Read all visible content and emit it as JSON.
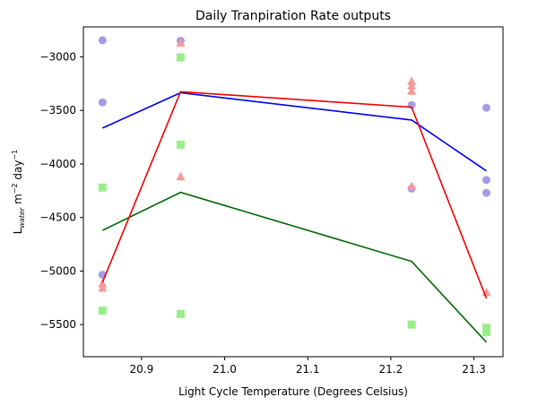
{
  "chart_data": {
    "type": "scatter",
    "title": "Daily Tranpiration Rate outputs",
    "xlabel": "Light Cycle Temperature (Degrees Celsius)",
    "ylabel": {
      "base": "L",
      "sub": "water",
      "mid": " m",
      "sup1": "−2",
      "mid2": " day",
      "sup2": "−1"
    },
    "xlim": [
      20.83,
      21.335
    ],
    "ylim": [
      -5800,
      -2720
    ],
    "xticks": [
      20.9,
      21.0,
      21.1,
      21.2,
      21.3
    ],
    "xtick_labels": [
      "20.9",
      "21.0",
      "21.1",
      "21.2",
      "21.3"
    ],
    "yticks": [
      -5500,
      -5000,
      -4500,
      -4000,
      -3500,
      -3000
    ],
    "ytick_labels": [
      "−5500",
      "−5000",
      "−4500",
      "−4000",
      "−3500",
      "−3000"
    ],
    "grid": false,
    "series": [
      {
        "marker": "circle",
        "color": "#a59be8",
        "line_color": "#0000ee",
        "points": [
          [
            20.853,
            -2845
          ],
          [
            20.853,
            -3425
          ],
          [
            20.853,
            -5035
          ],
          [
            20.947,
            -2850
          ],
          [
            21.225,
            -3450
          ],
          [
            21.225,
            -4230
          ],
          [
            21.315,
            -3475
          ],
          [
            21.315,
            -4150
          ],
          [
            21.315,
            -4270
          ]
        ],
        "line": [
          [
            20.853,
            -3665
          ],
          [
            20.947,
            -3335
          ],
          [
            21.225,
            -3590
          ],
          [
            21.315,
            -4065
          ]
        ]
      },
      {
        "marker": "square",
        "color": "#99ee88",
        "line_color": "#006600",
        "points": [
          [
            20.853,
            -4220
          ],
          [
            20.853,
            -5370
          ],
          [
            20.947,
            -3005
          ],
          [
            20.947,
            -3820
          ],
          [
            20.947,
            -5400
          ],
          [
            21.225,
            -5500
          ],
          [
            21.315,
            -5530
          ],
          [
            21.315,
            -5570
          ]
        ],
        "line": [
          [
            20.853,
            -4620
          ],
          [
            20.947,
            -4265
          ],
          [
            21.225,
            -4910
          ],
          [
            21.315,
            -5665
          ]
        ]
      },
      {
        "marker": "triangle",
        "color": "#f59999",
        "line_color": "#ee0000",
        "points": [
          [
            20.853,
            -5120
          ],
          [
            20.853,
            -5160
          ],
          [
            20.947,
            -2870
          ],
          [
            20.947,
            -4120
          ],
          [
            21.225,
            -3230
          ],
          [
            21.225,
            -3270
          ],
          [
            21.225,
            -3320
          ],
          [
            21.225,
            -4210
          ],
          [
            21.315,
            -5200
          ]
        ],
        "line": [
          [
            20.853,
            -5105
          ],
          [
            20.947,
            -3325
          ],
          [
            21.225,
            -3470
          ],
          [
            21.315,
            -5255
          ]
        ]
      }
    ]
  }
}
